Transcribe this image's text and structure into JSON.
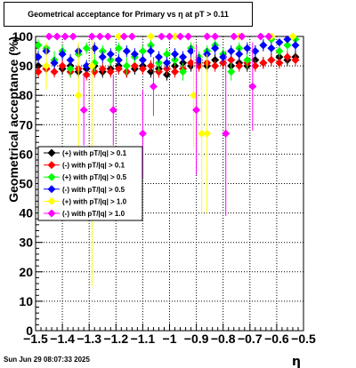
{
  "title": "Geometrical acceptance for Primary vs    η  at pT > 0.11",
  "timestamp": "Sun Jun 29 08:07:33 2025",
  "chart_data": {
    "type": "scatter",
    "title": "Geometrical acceptance for Primary vs    η  at pT > 0.11",
    "xlabel": "η",
    "ylabel": "Geometrical acceptance (%)",
    "xlim": [
      -1.5,
      -0.5
    ],
    "ylim": [
      0,
      100
    ],
    "grid": true,
    "legend_position": "left-middle",
    "x_ticks": [
      "−1.5",
      "−1.4",
      "−1.3",
      "−1.2",
      "−1.1",
      "−1",
      "−0.9",
      "−0.8",
      "−0.7",
      "−0.6",
      "−0.5"
    ],
    "y_ticks": [
      "0",
      "10",
      "20",
      "30",
      "40",
      "50",
      "60",
      "70",
      "80",
      "90",
      "100"
    ],
    "series": [
      {
        "name": "(+) with pT/|q| > 0.1",
        "color": "#000000",
        "points": [
          {
            "x": -1.49,
            "y": 90,
            "e": 2
          },
          {
            "x": -1.46,
            "y": 89,
            "e": 2
          },
          {
            "x": -1.43,
            "y": 91,
            "e": 2
          },
          {
            "x": -1.4,
            "y": 89,
            "e": 2
          },
          {
            "x": -1.37,
            "y": 90,
            "e": 2
          },
          {
            "x": -1.34,
            "y": 88,
            "e": 2
          },
          {
            "x": -1.31,
            "y": 89,
            "e": 2
          },
          {
            "x": -1.28,
            "y": 90,
            "e": 2
          },
          {
            "x": -1.25,
            "y": 88,
            "e": 2
          },
          {
            "x": -1.22,
            "y": 89,
            "e": 2
          },
          {
            "x": -1.19,
            "y": 90,
            "e": 2
          },
          {
            "x": -1.16,
            "y": 88,
            "e": 2
          },
          {
            "x": -1.13,
            "y": 89,
            "e": 2
          },
          {
            "x": -1.1,
            "y": 90,
            "e": 2
          },
          {
            "x": -1.07,
            "y": 88,
            "e": 2
          },
          {
            "x": -1.04,
            "y": 89,
            "e": 2
          },
          {
            "x": -1.01,
            "y": 87,
            "e": 2
          },
          {
            "x": -0.98,
            "y": 90,
            "e": 2
          },
          {
            "x": -0.95,
            "y": 91,
            "e": 2
          },
          {
            "x": -0.92,
            "y": 90,
            "e": 2
          },
          {
            "x": -0.89,
            "y": 91,
            "e": 2
          },
          {
            "x": -0.86,
            "y": 90,
            "e": 2
          },
          {
            "x": -0.83,
            "y": 92,
            "e": 2
          },
          {
            "x": -0.8,
            "y": 91,
            "e": 2
          },
          {
            "x": -0.77,
            "y": 90,
            "e": 2
          },
          {
            "x": -0.74,
            "y": 91,
            "e": 2
          },
          {
            "x": -0.71,
            "y": 90,
            "e": 2
          },
          {
            "x": -0.68,
            "y": 92,
            "e": 2
          },
          {
            "x": -0.65,
            "y": 91,
            "e": 2
          },
          {
            "x": -0.62,
            "y": 92,
            "e": 2
          },
          {
            "x": -0.59,
            "y": 93,
            "e": 2
          },
          {
            "x": -0.56,
            "y": 92,
            "e": 2
          },
          {
            "x": -0.53,
            "y": 93,
            "e": 2
          }
        ]
      },
      {
        "name": "(-) with pT/|q| > 0.1",
        "color": "#ff0000",
        "points": [
          {
            "x": -1.49,
            "y": 88,
            "e": 2
          },
          {
            "x": -1.46,
            "y": 89,
            "e": 2
          },
          {
            "x": -1.43,
            "y": 88,
            "e": 2
          },
          {
            "x": -1.4,
            "y": 90,
            "e": 2
          },
          {
            "x": -1.37,
            "y": 88,
            "e": 2
          },
          {
            "x": -1.34,
            "y": 89,
            "e": 2
          },
          {
            "x": -1.31,
            "y": 87,
            "e": 2
          },
          {
            "x": -1.28,
            "y": 88,
            "e": 2
          },
          {
            "x": -1.25,
            "y": 89,
            "e": 2
          },
          {
            "x": -1.22,
            "y": 88,
            "e": 2
          },
          {
            "x": -1.19,
            "y": 89,
            "e": 2
          },
          {
            "x": -1.16,
            "y": 88,
            "e": 2
          },
          {
            "x": -1.13,
            "y": 90,
            "e": 2
          },
          {
            "x": -1.1,
            "y": 89,
            "e": 2
          },
          {
            "x": -1.07,
            "y": 90,
            "e": 2
          },
          {
            "x": -1.04,
            "y": 88,
            "e": 2
          },
          {
            "x": -1.01,
            "y": 89,
            "e": 2
          },
          {
            "x": -0.98,
            "y": 88,
            "e": 2
          },
          {
            "x": -0.95,
            "y": 89,
            "e": 2
          },
          {
            "x": -0.92,
            "y": 91,
            "e": 2
          },
          {
            "x": -0.89,
            "y": 90,
            "e": 2
          },
          {
            "x": -0.86,
            "y": 91,
            "e": 2
          },
          {
            "x": -0.83,
            "y": 90,
            "e": 2
          },
          {
            "x": -0.8,
            "y": 91,
            "e": 2
          },
          {
            "x": -0.77,
            "y": 92,
            "e": 2
          },
          {
            "x": -0.74,
            "y": 90,
            "e": 2
          },
          {
            "x": -0.71,
            "y": 91,
            "e": 2
          },
          {
            "x": -0.68,
            "y": 90,
            "e": 2
          },
          {
            "x": -0.65,
            "y": 91,
            "e": 2
          },
          {
            "x": -0.62,
            "y": 92,
            "e": 2
          },
          {
            "x": -0.59,
            "y": 91,
            "e": 2
          },
          {
            "x": -0.56,
            "y": 93,
            "e": 2
          },
          {
            "x": -0.53,
            "y": 92,
            "e": 2
          }
        ]
      },
      {
        "name": "(+) with pT/|q| > 0.5",
        "color": "#00ff00",
        "points": [
          {
            "x": -1.49,
            "y": 97,
            "e": 2
          },
          {
            "x": -1.46,
            "y": 96,
            "e": 2
          },
          {
            "x": -1.43,
            "y": 92,
            "e": 3
          },
          {
            "x": -1.4,
            "y": 95,
            "e": 2
          },
          {
            "x": -1.37,
            "y": 89,
            "e": 3
          },
          {
            "x": -1.34,
            "y": 94,
            "e": 2
          },
          {
            "x": -1.31,
            "y": 96,
            "e": 2
          },
          {
            "x": -1.28,
            "y": 91,
            "e": 3
          },
          {
            "x": -1.25,
            "y": 95,
            "e": 2
          },
          {
            "x": -1.22,
            "y": 92,
            "e": 2
          },
          {
            "x": -1.19,
            "y": 96,
            "e": 2
          },
          {
            "x": -1.16,
            "y": 90,
            "e": 3
          },
          {
            "x": -1.13,
            "y": 93,
            "e": 2
          },
          {
            "x": -1.1,
            "y": 95,
            "e": 2
          },
          {
            "x": -1.07,
            "y": 97,
            "e": 2
          },
          {
            "x": -1.04,
            "y": 91,
            "e": 3
          },
          {
            "x": -1.01,
            "y": 94,
            "e": 2
          },
          {
            "x": -0.98,
            "y": 92,
            "e": 2
          },
          {
            "x": -0.95,
            "y": 88,
            "e": 3
          },
          {
            "x": -0.92,
            "y": 96,
            "e": 2
          },
          {
            "x": -0.89,
            "y": 93,
            "e": 2
          },
          {
            "x": -0.86,
            "y": 95,
            "e": 2
          },
          {
            "x": -0.83,
            "y": 97,
            "e": 2
          },
          {
            "x": -0.8,
            "y": 94,
            "e": 2
          },
          {
            "x": -0.77,
            "y": 88,
            "e": 3
          },
          {
            "x": -0.74,
            "y": 96,
            "e": 2
          },
          {
            "x": -0.71,
            "y": 92,
            "e": 3
          },
          {
            "x": -0.68,
            "y": 95,
            "e": 2
          },
          {
            "x": -0.65,
            "y": 97,
            "e": 2
          },
          {
            "x": -0.62,
            "y": 99,
            "e": 1
          },
          {
            "x": -0.59,
            "y": 95,
            "e": 2
          },
          {
            "x": -0.56,
            "y": 97,
            "e": 2
          },
          {
            "x": -0.53,
            "y": 99,
            "e": 1
          }
        ]
      },
      {
        "name": "(-) with pT/|q| > 0.5",
        "color": "#0000ff",
        "points": [
          {
            "x": -1.49,
            "y": 93,
            "e": 2
          },
          {
            "x": -1.46,
            "y": 95,
            "e": 2
          },
          {
            "x": -1.43,
            "y": 91,
            "e": 2
          },
          {
            "x": -1.4,
            "y": 94,
            "e": 2
          },
          {
            "x": -1.37,
            "y": 92,
            "e": 2
          },
          {
            "x": -1.34,
            "y": 95,
            "e": 2
          },
          {
            "x": -1.31,
            "y": 90,
            "e": 2
          },
          {
            "x": -1.28,
            "y": 96,
            "e": 2
          },
          {
            "x": -1.25,
            "y": 93,
            "e": 2
          },
          {
            "x": -1.22,
            "y": 94,
            "e": 2
          },
          {
            "x": -1.19,
            "y": 92,
            "e": 2
          },
          {
            "x": -1.16,
            "y": 95,
            "e": 2
          },
          {
            "x": -1.13,
            "y": 94,
            "e": 2
          },
          {
            "x": -1.1,
            "y": 92,
            "e": 2
          },
          {
            "x": -1.07,
            "y": 95,
            "e": 2
          },
          {
            "x": -1.04,
            "y": 93,
            "e": 2
          },
          {
            "x": -1.01,
            "y": 91,
            "e": 2
          },
          {
            "x": -0.98,
            "y": 94,
            "e": 2
          },
          {
            "x": -0.95,
            "y": 93,
            "e": 2
          },
          {
            "x": -0.92,
            "y": 95,
            "e": 2
          },
          {
            "x": -0.89,
            "y": 92,
            "e": 2
          },
          {
            "x": -0.86,
            "y": 94,
            "e": 2
          },
          {
            "x": -0.83,
            "y": 96,
            "e": 2
          },
          {
            "x": -0.8,
            "y": 93,
            "e": 2
          },
          {
            "x": -0.77,
            "y": 95,
            "e": 2
          },
          {
            "x": -0.74,
            "y": 94,
            "e": 2
          },
          {
            "x": -0.71,
            "y": 96,
            "e": 2
          },
          {
            "x": -0.68,
            "y": 95,
            "e": 2
          },
          {
            "x": -0.65,
            "y": 97,
            "e": 2
          },
          {
            "x": -0.62,
            "y": 96,
            "e": 2
          },
          {
            "x": -0.59,
            "y": 98,
            "e": 1
          },
          {
            "x": -0.56,
            "y": 99,
            "e": 1
          },
          {
            "x": -0.53,
            "y": 97,
            "e": 2
          }
        ]
      },
      {
        "name": "(+) with pT/|q| > 1.0",
        "color": "#ffff00",
        "points": [
          {
            "x": -1.46,
            "y": 90,
            "e": 8
          },
          {
            "x": -1.34,
            "y": 80,
            "e": 18
          },
          {
            "x": -1.29,
            "y": 90,
            "e": 75
          },
          {
            "x": -1.19,
            "y": 100,
            "e": 0
          },
          {
            "x": -1.07,
            "y": 100,
            "e": 0
          },
          {
            "x": -0.98,
            "y": 100,
            "e": 0
          },
          {
            "x": -0.91,
            "y": 80,
            "e": 18
          },
          {
            "x": -0.88,
            "y": 67,
            "e": 27
          },
          {
            "x": -0.86,
            "y": 67,
            "e": 27
          },
          {
            "x": -0.74,
            "y": 100,
            "e": 0
          },
          {
            "x": -0.62,
            "y": 100,
            "e": 0
          },
          {
            "x": -0.54,
            "y": 100,
            "e": 0
          }
        ]
      },
      {
        "name": "(-) with pT/|q| > 1.0",
        "color": "#ff00ff",
        "points": [
          {
            "x": -1.45,
            "y": 100,
            "e": 0
          },
          {
            "x": -1.42,
            "y": 100,
            "e": 0
          },
          {
            "x": -1.39,
            "y": 100,
            "e": 0
          },
          {
            "x": -1.36,
            "y": 100,
            "e": 0
          },
          {
            "x": -1.32,
            "y": 75,
            "e": 12
          },
          {
            "x": -1.29,
            "y": 100,
            "e": 0
          },
          {
            "x": -1.26,
            "y": 100,
            "e": 0
          },
          {
            "x": -1.23,
            "y": 100,
            "e": 0
          },
          {
            "x": -1.21,
            "y": 75,
            "e": 12
          },
          {
            "x": -1.17,
            "y": 100,
            "e": 0
          },
          {
            "x": -1.14,
            "y": 100,
            "e": 0
          },
          {
            "x": -1.1,
            "y": 67,
            "e": 15
          },
          {
            "x": -1.06,
            "y": 83,
            "e": 10
          },
          {
            "x": -1.03,
            "y": 100,
            "e": 0
          },
          {
            "x": -1.0,
            "y": 100,
            "e": 0
          },
          {
            "x": -0.96,
            "y": 100,
            "e": 0
          },
          {
            "x": -0.93,
            "y": 100,
            "e": 0
          },
          {
            "x": -0.9,
            "y": 75,
            "e": 22
          },
          {
            "x": -0.86,
            "y": 100,
            "e": 0
          },
          {
            "x": -0.83,
            "y": 100,
            "e": 0
          },
          {
            "x": -0.79,
            "y": 67,
            "e": 28
          },
          {
            "x": -0.76,
            "y": 100,
            "e": 0
          },
          {
            "x": -0.73,
            "y": 100,
            "e": 0
          },
          {
            "x": -0.69,
            "y": 83,
            "e": 15
          },
          {
            "x": -0.66,
            "y": 100,
            "e": 0
          },
          {
            "x": -0.63,
            "y": 100,
            "e": 0
          }
        ]
      }
    ]
  }
}
